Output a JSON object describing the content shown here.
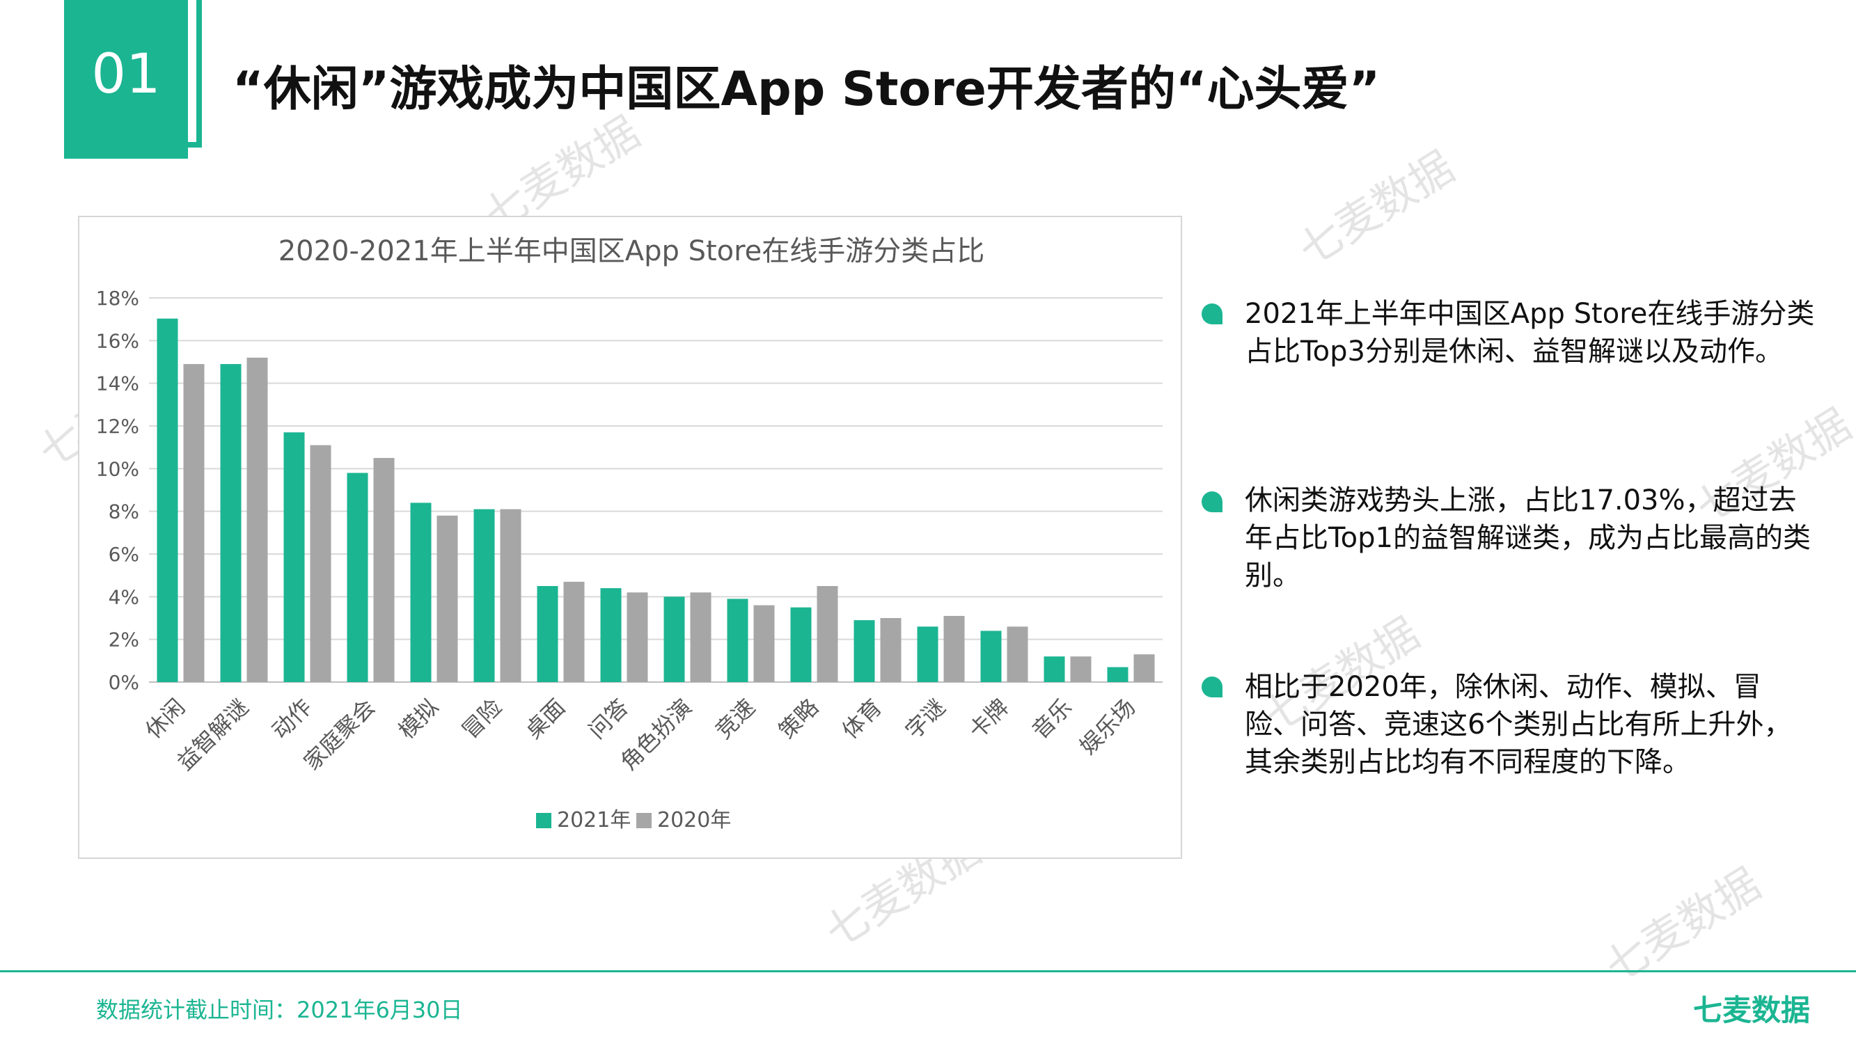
{
  "header": {
    "section_number": "01",
    "title": "“休闲”游戏成为中国区App Store开发者的“心头爱”"
  },
  "chart_data": {
    "type": "bar",
    "title": "2020-2021年上半年中国区App Store在线手游分类占比",
    "categories": [
      "休闲",
      "益智解谜",
      "动作",
      "家庭聚会",
      "模拟",
      "冒险",
      "桌面",
      "问答",
      "角色扮演",
      "竞速",
      "策略",
      "体育",
      "字谜",
      "卡牌",
      "音乐",
      "娱乐场"
    ],
    "series": [
      {
        "name": "2021年",
        "values": [
          17.03,
          14.9,
          11.7,
          9.8,
          8.4,
          8.1,
          4.5,
          4.4,
          4.0,
          3.9,
          3.5,
          2.9,
          2.6,
          2.4,
          1.2,
          0.7
        ]
      },
      {
        "name": "2020年",
        "values": [
          14.9,
          15.2,
          11.1,
          10.5,
          7.8,
          8.1,
          4.7,
          4.2,
          4.2,
          3.6,
          4.5,
          3.0,
          3.1,
          2.6,
          1.2,
          1.3
        ]
      }
    ],
    "ylim": [
      0,
      18
    ],
    "yticks": [
      "0%",
      "2%",
      "4%",
      "6%",
      "8%",
      "10%",
      "12%",
      "14%",
      "16%",
      "18%"
    ],
    "colors": {
      "2021年": "#1bb592",
      "2020年": "#a6a6a6"
    },
    "grid": true,
    "legend_position": "bottom"
  },
  "bullets": [
    "2021年上半年中国区App Store在线手游分类占比Top3分别是休闲、益智解谜以及动作。",
    "休闲类游戏势头上涨，占比17.03%，超过去年占比Top1的益智解谜类，成为占比最高的类别。",
    "相比于2020年，除休闲、动作、模拟、冒险、问答、竞速这6个类别占比有所上升外，其余类别占比均有不同程度的下降。"
  ],
  "footer": {
    "note": "数据统计截止时间：2021年6月30日",
    "brand": "七麦数据"
  },
  "watermark": "七麦数据",
  "colors": {
    "accent": "#1bb592",
    "secondary": "#a6a6a6"
  }
}
